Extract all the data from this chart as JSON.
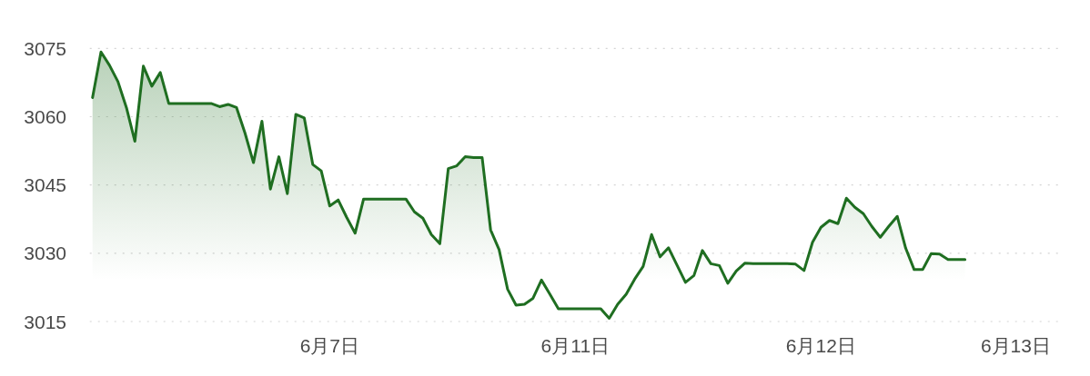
{
  "chart_data": {
    "type": "area",
    "categories": [
      null,
      null,
      null,
      null,
      null,
      null,
      null,
      null,
      null,
      null,
      null,
      null,
      null,
      null,
      null,
      null,
      null,
      null,
      null,
      null,
      null,
      null,
      null,
      null,
      null,
      null,
      null,
      null,
      "6月7日",
      null,
      null,
      null,
      null,
      null,
      null,
      null,
      null,
      null,
      null,
      null,
      null,
      null,
      null,
      null,
      null,
      null,
      null,
      null,
      null,
      null,
      null,
      null,
      null,
      null,
      null,
      null,
      null,
      "6月11日",
      null,
      null,
      null,
      null,
      null,
      null,
      null,
      null,
      null,
      null,
      null,
      null,
      null,
      null,
      null,
      null,
      null,
      null,
      null,
      null,
      null,
      null,
      null,
      null,
      null,
      null,
      null,
      null,
      "6月12日",
      null,
      null,
      null,
      null,
      null,
      null,
      null,
      null,
      null,
      null,
      null,
      null,
      null,
      null,
      null,
      null,
      null,
      null,
      null,
      null,
      null,
      null,
      "6月13日",
      null,
      null,
      null,
      null,
      null
    ],
    "values": [
      3064.2,
      3074.2,
      3071.3,
      3067.7,
      3062.0,
      3054.6,
      3071.1,
      3066.7,
      3069.7,
      3062.9,
      3062.9,
      3062.9,
      3062.9,
      3062.9,
      3062.9,
      3062.2,
      3062.7,
      3062.0,
      3056.4,
      3049.9,
      3059.0,
      3044.1,
      3051.2,
      3043.1,
      3060.5,
      3059.7,
      3049.5,
      3048.1,
      3040.4,
      3041.7,
      3037.9,
      3034.4,
      3041.9,
      3041.9,
      3041.9,
      3041.9,
      3041.9,
      3041.9,
      3039.1,
      3037.7,
      3034.1,
      3032.1,
      3048.6,
      3049.2,
      3051.2,
      3051.0,
      3051.0,
      3035.1,
      3030.8,
      3022.1,
      3018.6,
      3018.8,
      3020.1,
      3024.1,
      3021.0,
      3017.8,
      3017.8,
      3017.8,
      3017.8,
      3017.8,
      3017.8,
      3015.7,
      3018.8,
      3021.0,
      3024.3,
      3027.1,
      3034.1,
      3029.2,
      3031.2,
      3027.4,
      3023.6,
      3025.1,
      3030.6,
      3027.7,
      3027.3,
      3023.4,
      3026.1,
      3027.8,
      3027.7,
      3027.7,
      3027.7,
      3027.7,
      3027.7,
      3027.6,
      3026.2,
      3032.4,
      3035.7,
      3037.2,
      3036.5,
      3042.1,
      3040.1,
      3038.7,
      3035.9,
      3033.5,
      3035.9,
      3038.1,
      3031.1,
      3026.4,
      3026.4,
      3029.9,
      3029.8,
      3028.6,
      3028.6,
      3028.6,
      null,
      null,
      null,
      null,
      null,
      null,
      null,
      null,
      null,
      null,
      null
    ],
    "color": "#1f6e21",
    "ylim": [
      3015,
      3075
    ],
    "yticks": [
      3015,
      3030,
      3045,
      3060,
      3075
    ],
    "grid": "y"
  }
}
